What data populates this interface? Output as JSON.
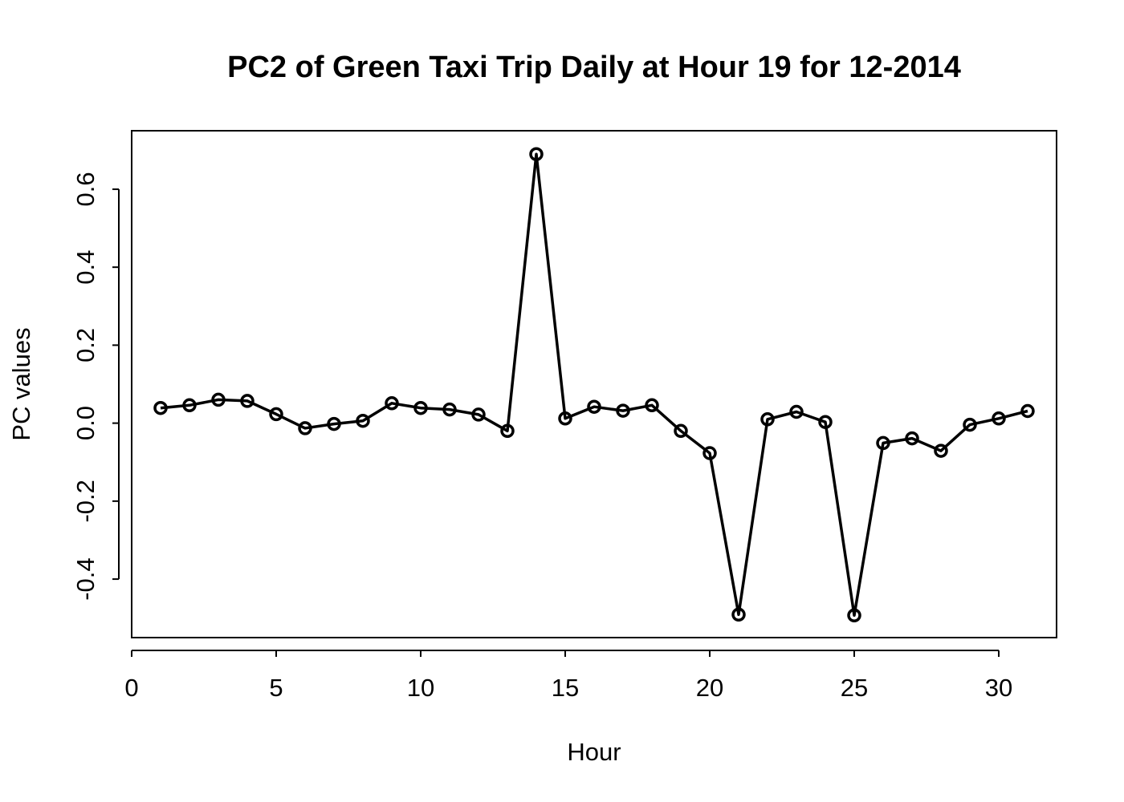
{
  "chart_data": {
    "type": "line",
    "title": "PC2 of Green Taxi Trip Daily at Hour 19 for 12-2014",
    "xlabel": "Hour",
    "ylabel": "PC values",
    "xlim": [
      0,
      32
    ],
    "ylim": [
      -0.55,
      0.75
    ],
    "x_ticks": [
      0,
      5,
      10,
      15,
      20,
      25,
      30
    ],
    "x_tick_labels": [
      "0",
      "5",
      "10",
      "15",
      "20",
      "25",
      "30"
    ],
    "y_ticks": [
      -0.4,
      -0.2,
      0.0,
      0.2,
      0.4,
      0.6
    ],
    "y_tick_labels": [
      "-0.4",
      "-0.2",
      "0.0",
      "0.2",
      "0.4",
      "0.6"
    ],
    "grid": false,
    "legend": "none",
    "series": [
      {
        "marker": "open-circle",
        "color": "#000000",
        "x": [
          1,
          2,
          3,
          4,
          5,
          6,
          7,
          8,
          9,
          10,
          11,
          12,
          13,
          14,
          15,
          16,
          17,
          18,
          19,
          20,
          21,
          22,
          23,
          24,
          25,
          26,
          27,
          28,
          29,
          30,
          31
        ],
        "values": [
          0.039,
          0.046,
          0.06,
          0.057,
          0.023,
          -0.013,
          -0.002,
          0.006,
          0.051,
          0.039,
          0.035,
          0.022,
          -0.02,
          0.69,
          0.012,
          0.042,
          0.032,
          0.046,
          -0.02,
          -0.077,
          -0.491,
          0.01,
          0.029,
          0.003,
          -0.493,
          -0.051,
          -0.039,
          -0.071,
          -0.004,
          0.012,
          0.031
        ]
      }
    ]
  }
}
